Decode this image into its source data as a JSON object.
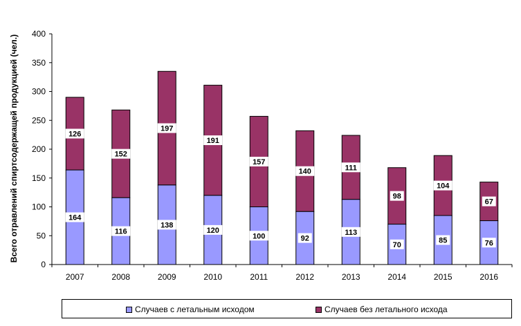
{
  "chart_data": {
    "type": "bar",
    "stacked": true,
    "categories": [
      "2007",
      "2008",
      "2009",
      "2010",
      "2011",
      "2012",
      "2013",
      "2014",
      "2015",
      "2016"
    ],
    "series": [
      {
        "name": "Случаев с летальным исходом",
        "color": "#9999ff",
        "values": [
          164,
          116,
          138,
          120,
          100,
          92,
          113,
          70,
          85,
          76
        ]
      },
      {
        "name": "Случаев без летального исхода",
        "color": "#993366",
        "values": [
          126,
          152,
          197,
          191,
          157,
          140,
          111,
          98,
          104,
          67
        ]
      }
    ],
    "title": "",
    "xlabel": "",
    "ylabel": "Всего отравлений спиртсодержащей продукцией (чел.)",
    "ylim": [
      0,
      400
    ],
    "yticks": [
      0,
      50,
      100,
      150,
      200,
      250,
      300,
      350,
      400
    ],
    "grid": false,
    "legend": "bottom"
  }
}
